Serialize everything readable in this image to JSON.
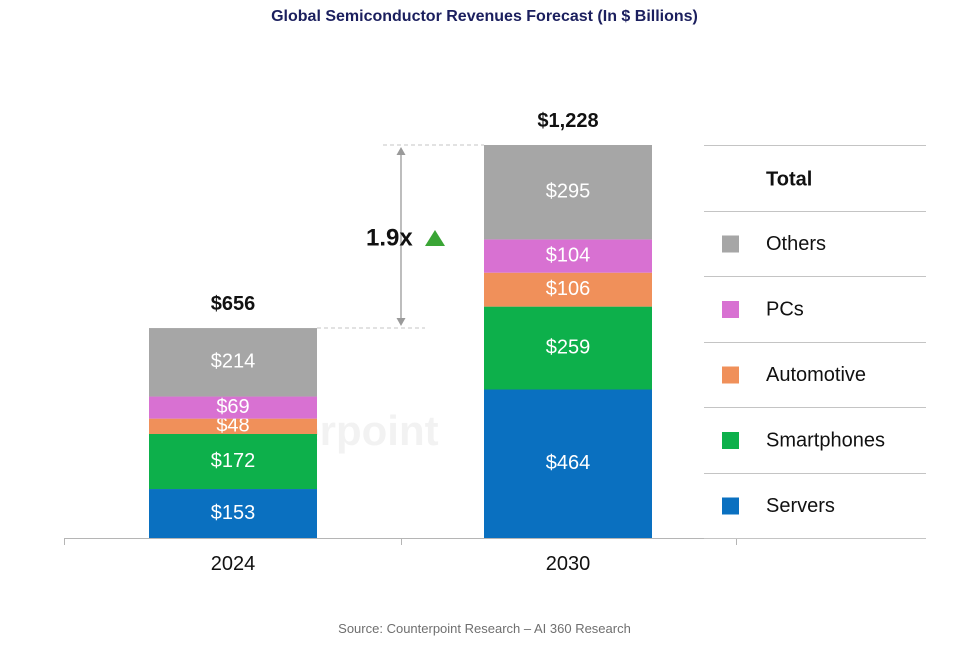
{
  "title": "Global Semiconductor Revenues Forecast (In $ Billions)",
  "source": "Source: Counterpoint Research – AI 360 Research",
  "watermark": "Counterpoint",
  "chart_data": {
    "type": "bar",
    "stacked": true,
    "title": "Global Semiconductor Revenues Forecast (In $ Billions)",
    "xlabel": "",
    "ylabel": "",
    "categories": [
      "2024",
      "2030"
    ],
    "series": [
      {
        "name": "Servers",
        "color": "#0a70c0",
        "values": [
          153,
          464
        ],
        "labels": [
          "$153",
          "$464"
        ]
      },
      {
        "name": "Smartphones",
        "color": "#0db04b",
        "values": [
          172,
          259
        ],
        "labels": [
          "$172",
          "$259"
        ]
      },
      {
        "name": "Automotive",
        "color": "#f0905a",
        "values": [
          48,
          106
        ],
        "labels": [
          "$48",
          "$106"
        ]
      },
      {
        "name": "PCs",
        "color": "#d871d2",
        "values": [
          69,
          104
        ],
        "labels": [
          "$69",
          "$104"
        ]
      },
      {
        "name": "Others",
        "color": "#a6a6a6",
        "values": [
          214,
          295
        ],
        "labels": [
          "$214",
          "$295"
        ]
      }
    ],
    "totals": [
      656,
      1228
    ],
    "total_labels": [
      "$656",
      "$1,228"
    ],
    "ylim": [
      0,
      1228
    ],
    "grid": false,
    "legend": {
      "position": "right",
      "header": "Total",
      "order": [
        "Others",
        "PCs",
        "Automotive",
        "Smartphones",
        "Servers"
      ]
    },
    "annotation": {
      "text": "1.9x",
      "icon": "up-triangle-icon",
      "color": "#3aa535"
    }
  }
}
